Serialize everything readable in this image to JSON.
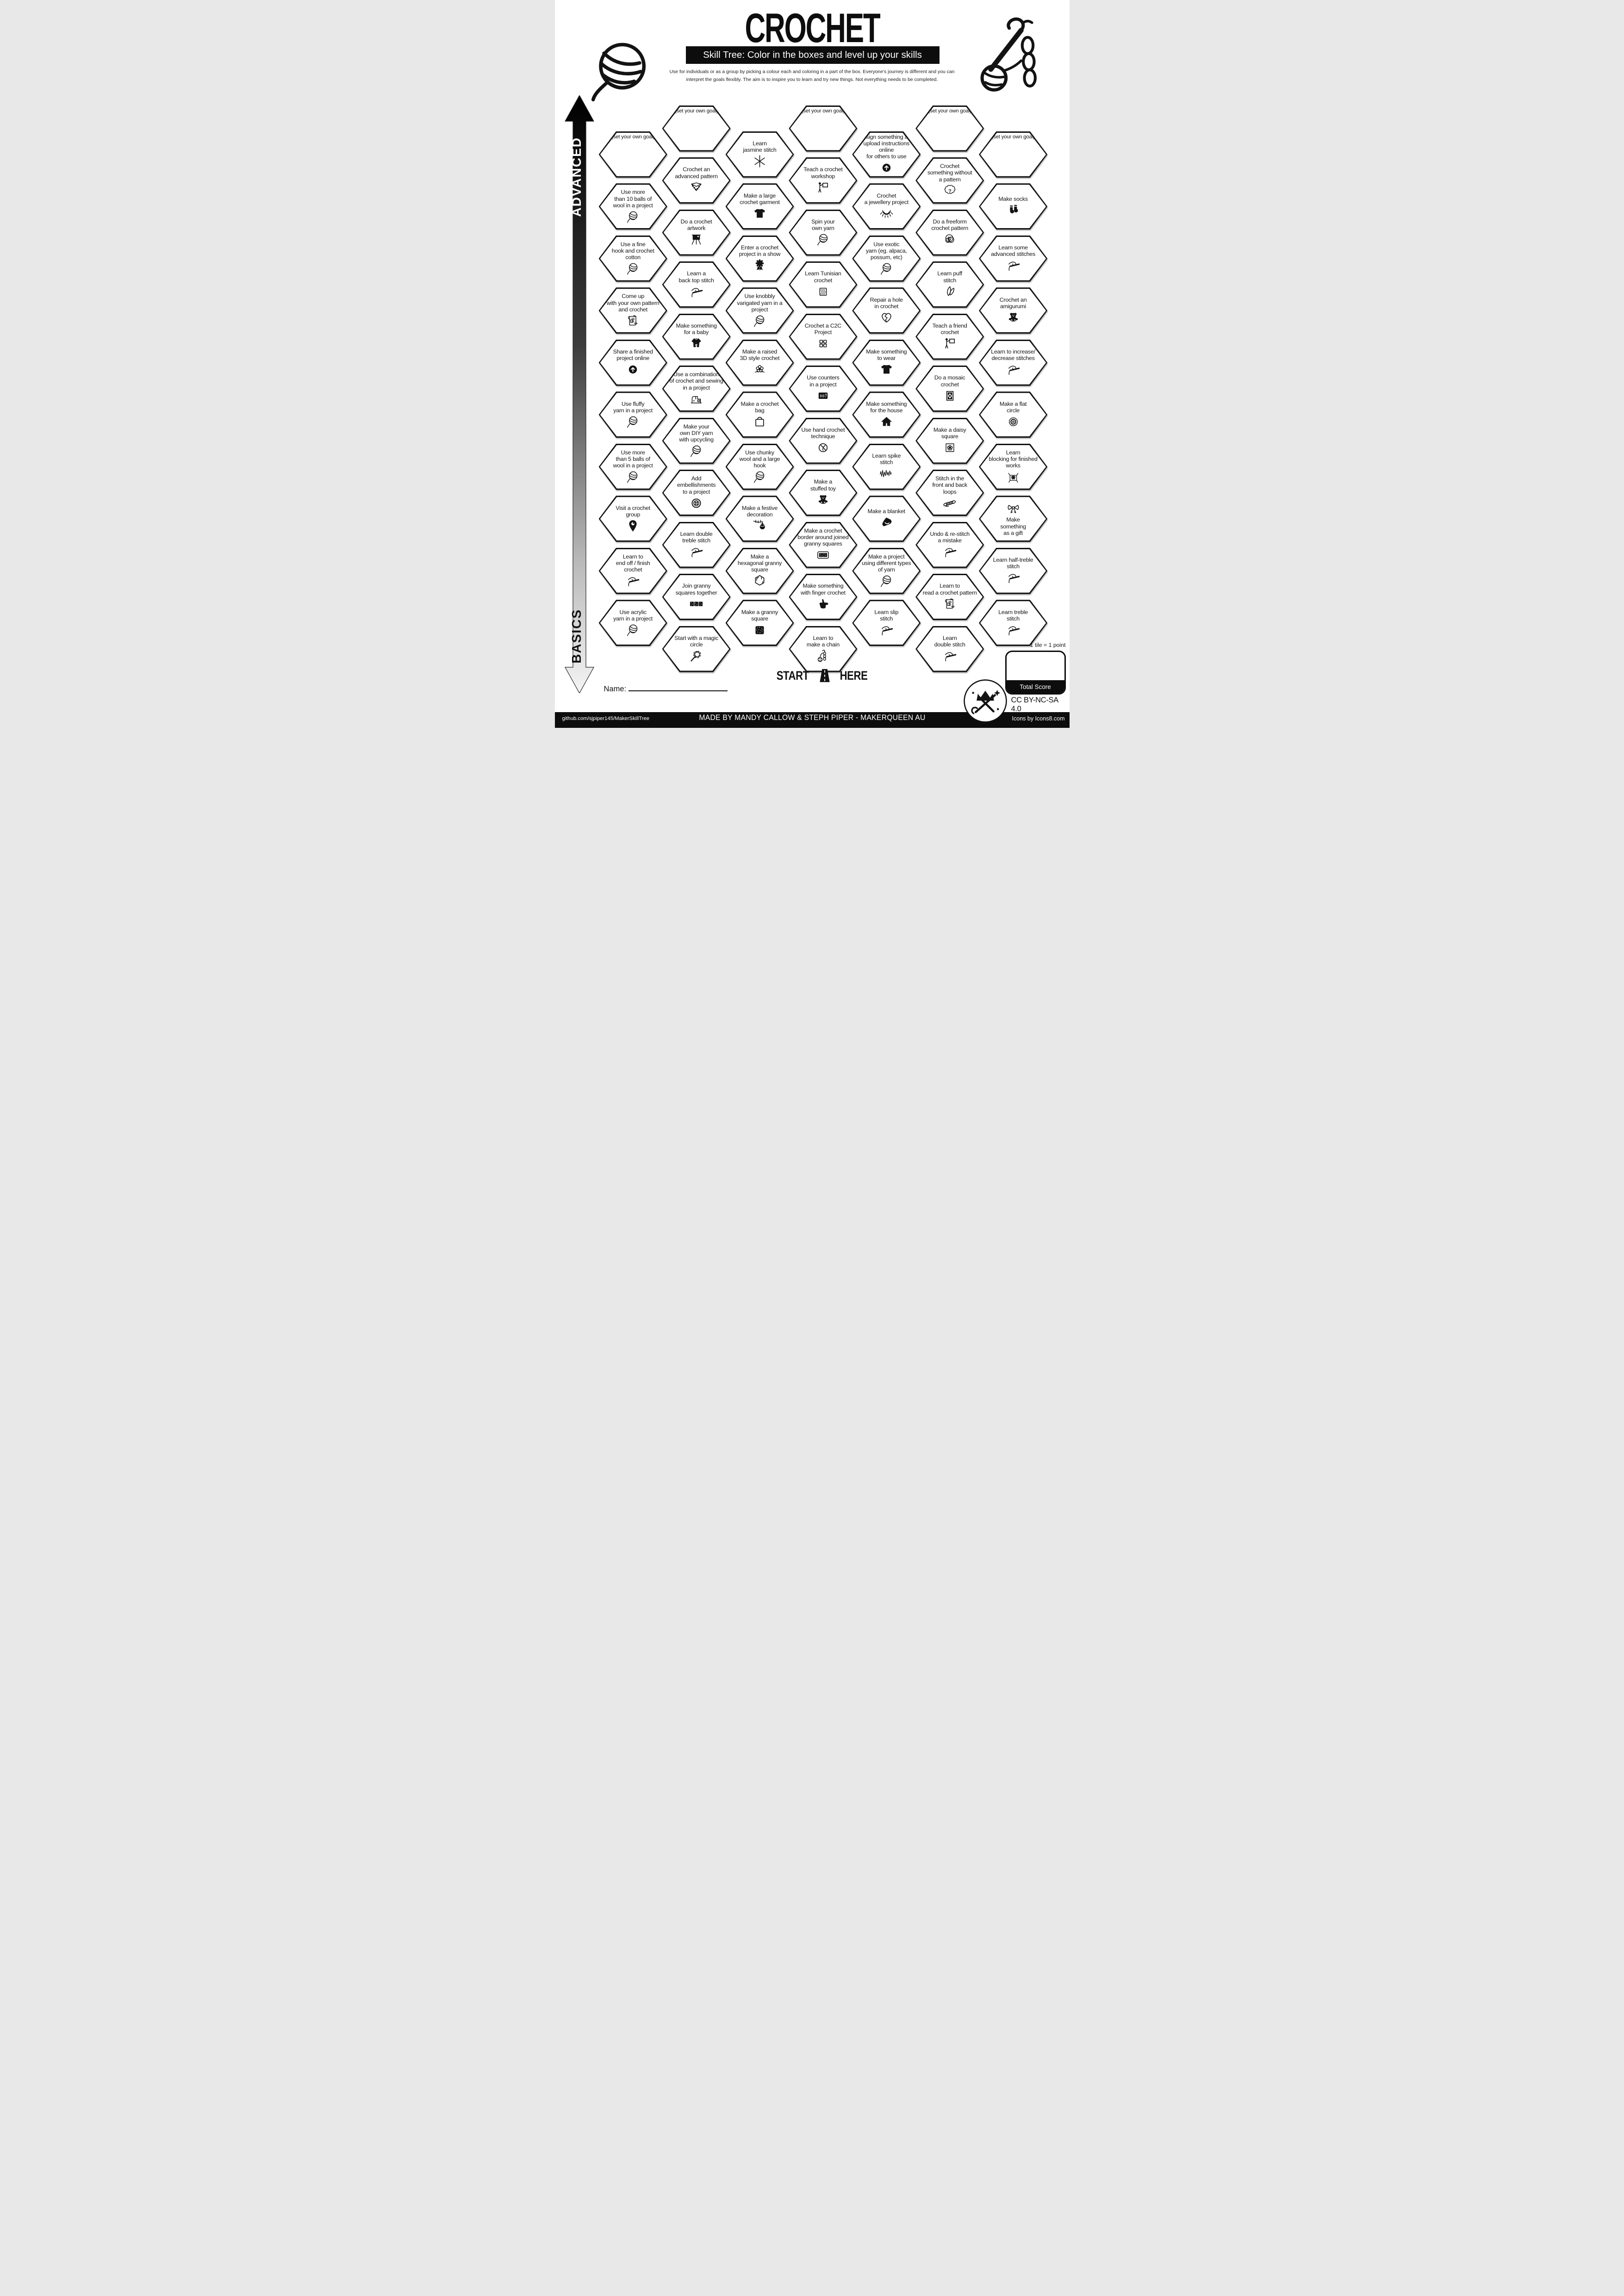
{
  "header": {
    "title": "CROCHET",
    "banner": "Skill Tree:  Color in the boxes and level up your skills",
    "description": "Use for individuals or as a group by picking a colour each and coloring in a part of the box.  Everyone's journey is different and you can\ninterpret the goals flexibly.  The aim is to inspire you to learn and try new things. Not everything needs to be completed."
  },
  "sidebar": {
    "advanced": "ADVANCED",
    "basics": "BASICS"
  },
  "grid": {
    "columns": [
      {
        "start": "low",
        "tiles": [
          {
            "label": "(set your own goal)",
            "goal": true
          },
          {
            "label": "Use more\nthan 10 balls of\nwool in a project",
            "icon": "yarn-ball"
          },
          {
            "label": "Use a fine\nhook and crochet\ncotton",
            "icon": "yarn-ball"
          },
          {
            "label": "Come up\nwith your own pattern\nand crochet",
            "icon": "pattern-sheet"
          },
          {
            "label": "Share a finished\nproject online",
            "icon": "upload"
          },
          {
            "label": "Use fluffy\nyarn in a project",
            "icon": "yarn-ball"
          },
          {
            "label": "Use more\nthan 5 balls of\nwool in a project",
            "icon": "yarn-ball"
          },
          {
            "label": "Visit a crochet\ngroup",
            "icon": "location-pin"
          },
          {
            "label": "Learn to\nend off / finish\ncrochet",
            "icon": "crochet-hook"
          },
          {
            "label": "Use acrylic\nyarn in a project",
            "icon": "yarn-ball"
          }
        ]
      },
      {
        "start": "high",
        "tiles": [
          {
            "label": "(set your own goal)",
            "goal": true
          },
          {
            "label": "Crochet an\nadvanced pattern",
            "icon": "shawl"
          },
          {
            "label": "Do a crochet\nartwork",
            "icon": "easel"
          },
          {
            "label": "Learn a\nback top stitch",
            "icon": "crochet-hook"
          },
          {
            "label": "Make something\nfor a baby",
            "icon": "baby-onesie"
          },
          {
            "label": "Use a combination\nof crochet and sewing\nin a project",
            "icon": "sewing-machine"
          },
          {
            "label": "Make your\nown DIY yarn\nwith upcycling",
            "icon": "yarn-ball"
          },
          {
            "label": "Add\nembellishments\nto a project",
            "icon": "button"
          },
          {
            "label": "Learn double\ntreble stitch",
            "icon": "crochet-hook"
          },
          {
            "label": "Join granny\nsquares together",
            "icon": "joined-squares"
          },
          {
            "label": "Start with a magic\ncircle",
            "icon": "magic-circle"
          }
        ]
      },
      {
        "start": "low",
        "tiles": [
          {
            "label": "Learn\njasmine stitch",
            "icon": "jasmine-flower"
          },
          {
            "label": "Make a large\ncrochet garment",
            "icon": "tshirt"
          },
          {
            "label": "Enter a crochet\nproject in a show",
            "icon": "rosette"
          },
          {
            "label": "Use knobbly\nvarigated yarn in a project",
            "icon": "yarn-ball"
          },
          {
            "label": "Make a raised\n3D style crochet",
            "icon": "flower-3d"
          },
          {
            "label": "Make a crochet\nbag",
            "icon": "shopping-bag"
          },
          {
            "label": "Use chunky\nwool and a large\nhook",
            "icon": "yarn-ball"
          },
          {
            "label": "Make a festive\ndecoration",
            "icon": "festive-bauble"
          },
          {
            "label": "Make a\nhexagonal granny\nsquare",
            "icon": "hexagon"
          },
          {
            "label": "Make a granny\nsquare",
            "icon": "granny-square"
          }
        ]
      },
      {
        "start": "high",
        "tiles": [
          {
            "label": "(set your own goal)",
            "goal": true
          },
          {
            "label": "Teach a crochet\nworkshop",
            "icon": "presenter"
          },
          {
            "label": "Spin your\nown yarn",
            "icon": "yarn-ball"
          },
          {
            "label": "Learn Tunisian\ncrochet",
            "icon": "tunisian-square"
          },
          {
            "label": "Crochet a C2C\nProject",
            "icon": "c2c-squares"
          },
          {
            "label": "Use counters\nin a project",
            "icon": "row-counter"
          },
          {
            "label": "Use hand crochet\ntechnique",
            "icon": "hand-crochet"
          },
          {
            "label": "Make a\nstuffed toy",
            "icon": "teddy-bear"
          },
          {
            "label": "Make a crochet\nborder around joined\ngranny squares",
            "icon": "bordered-squares"
          },
          {
            "label": "Make something\nwith finger crochet",
            "icon": "pointing-hand"
          },
          {
            "label": "Learn to\nmake a chain",
            "icon": "chain-stitch"
          }
        ]
      },
      {
        "start": "low",
        "tiles": [
          {
            "label": "Design something and\nupload instructions online\nfor others to use",
            "icon": "upload"
          },
          {
            "label": "Crochet\na jewellery project",
            "icon": "necklace"
          },
          {
            "label": "Use exotic\nyarn (eg. alpaca,\npossum, etc)",
            "icon": "yarn-ball"
          },
          {
            "label": "Repair a hole\nin crochet",
            "icon": "broken-heart"
          },
          {
            "label": "Make something\nto wear",
            "icon": "tshirt"
          },
          {
            "label": "Make something\nfor the house",
            "icon": "house"
          },
          {
            "label": "Learn spike\nstitch",
            "icon": "spike-zigzag"
          },
          {
            "label": "Make a blanket",
            "icon": "blanket"
          },
          {
            "label": "Make a project\nusing different types\nof yarn",
            "icon": "yarn-ball"
          },
          {
            "label": "Learn slip\nstitch",
            "icon": "crochet-hook"
          }
        ]
      },
      {
        "start": "high",
        "tiles": [
          {
            "label": "(set your own goal)",
            "goal": true
          },
          {
            "label": "Crochet\nsomething without\na pattern",
            "icon": "question-cloud"
          },
          {
            "label": "Do a freeform\ncrochet pattern",
            "icon": "freeform-scribble"
          },
          {
            "label": "Learn puff\nstitch",
            "icon": "puff-leaves"
          },
          {
            "label": "Teach a friend\ncrochet",
            "icon": "presenter"
          },
          {
            "label": "Do a mosaic\ncrochet",
            "icon": "mosaic-square"
          },
          {
            "label": "Make a daisy\nsquare",
            "icon": "daisy-square"
          },
          {
            "label": "Stitch in the\nfront and back\nloops",
            "icon": "loop-braid"
          },
          {
            "label": "Undo & re-stitch\na mistake",
            "icon": "crochet-hook"
          },
          {
            "label": "Learn to\nread a crochet pattern",
            "icon": "pattern-sheet"
          },
          {
            "label": "Learn\ndouble stitch",
            "icon": "crochet-hook"
          }
        ]
      },
      {
        "start": "low",
        "tiles": [
          {
            "label": "(set your own goal)",
            "goal": true
          },
          {
            "label": "Make socks",
            "icon": "socks"
          },
          {
            "label": "Learn some\nadvanced stitches",
            "icon": "crochet-hook"
          },
          {
            "label": "Crochet an\namigurumi",
            "icon": "teddy-bear"
          },
          {
            "label": "Learn to increase/\ndecrease stitches",
            "icon": "crochet-hook"
          },
          {
            "label": "Make a flat\ncircle",
            "icon": "flat-circle"
          },
          {
            "label": "Learn\nblocking for finished\nworks",
            "icon": "blocking-box"
          },
          {
            "label": "Make\nsomething\nas a gift",
            "icon": "gift-bow",
            "icon_first": true
          },
          {
            "label": "Learn half-treble\nstitch",
            "icon": "crochet-hook"
          },
          {
            "label": "Learn treble\nstitch",
            "icon": "crochet-hook"
          }
        ]
      }
    ]
  },
  "start_marker": {
    "start": "START",
    "here": "HERE"
  },
  "name_label": "Name:",
  "score": {
    "note": "1 tile = 1 point",
    "box_label": "Total Score"
  },
  "license": "CC BY-NC-SA 4.0",
  "credits": {
    "github": "github.com/sjpiper145/MakerSkillTree",
    "made_by": "MADE BY MANDY CALLOW & STEPH PIPER  -  MAKERQUEEN AU",
    "icons": "Icons by Icons8.com"
  },
  "colors": {
    "ink": "#131313",
    "bar": "#0d0d0d",
    "paper": "#ffffff"
  }
}
